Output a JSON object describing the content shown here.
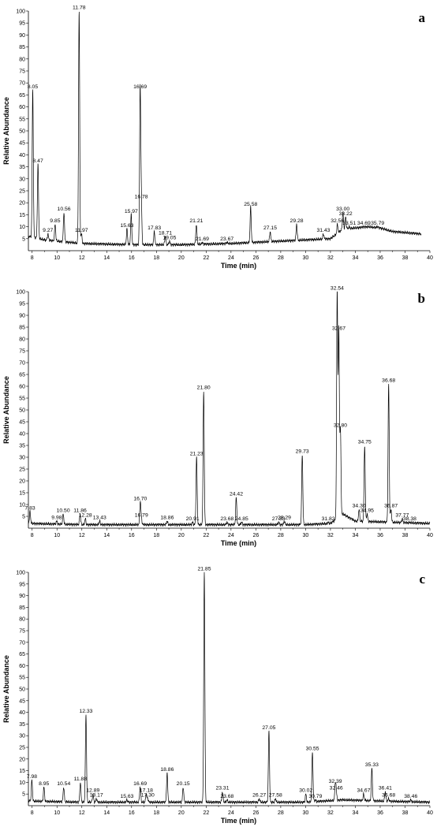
{
  "chart_data": [
    {
      "type": "line",
      "panel_label": "a",
      "xlabel": "Time (min)",
      "ylabel": "Relative Abundance",
      "xlim": [
        7.7,
        40
      ],
      "ylim": [
        0,
        100
      ],
      "x_ticks": [
        8,
        10,
        12,
        14,
        16,
        18,
        20,
        22,
        24,
        26,
        28,
        30,
        32,
        34,
        36,
        38,
        40
      ],
      "y_ticks": [
        5,
        10,
        15,
        20,
        25,
        30,
        35,
        40,
        45,
        50,
        55,
        60,
        65,
        70,
        75,
        80,
        85,
        90,
        95,
        100
      ],
      "baseline": [
        [
          7.7,
          6
        ],
        [
          9,
          4.5
        ],
        [
          12,
          3
        ],
        [
          16,
          2.5
        ],
        [
          20,
          2.5
        ],
        [
          24,
          3
        ],
        [
          28,
          4
        ],
        [
          32,
          5
        ],
        [
          33,
          9
        ],
        [
          35,
          10
        ],
        [
          36,
          9.5
        ],
        [
          37,
          8
        ],
        [
          39.3,
          7
        ]
      ],
      "peaks": [
        {
          "rt": "8.05",
          "x": 8.05,
          "y": 67
        },
        {
          "rt": "8.47",
          "x": 8.47,
          "y": 36
        },
        {
          "rt": "9.27",
          "x": 9.27,
          "y": 7
        },
        {
          "rt": "9.85",
          "x": 9.85,
          "y": 11
        },
        {
          "rt": "10.56",
          "x": 10.56,
          "y": 16
        },
        {
          "rt": "11.78",
          "x": 11.78,
          "y": 100
        },
        {
          "rt": "11.97",
          "x": 11.97,
          "y": 7
        },
        {
          "rt": "15.63",
          "x": 15.63,
          "y": 9
        },
        {
          "rt": "15.97",
          "x": 15.97,
          "y": 15
        },
        {
          "rt": "16.69",
          "x": 16.69,
          "y": 67
        },
        {
          "rt": "16.78",
          "x": 16.78,
          "y": 21
        },
        {
          "rt": "17.83",
          "x": 17.83,
          "y": 8
        },
        {
          "rt": "18.71",
          "x": 18.71,
          "y": 6
        },
        {
          "rt": "19.05",
          "x": 19.05,
          "y": 4
        },
        {
          "rt": "21.21",
          "x": 21.21,
          "y": 11
        },
        {
          "rt": "21.69",
          "x": 21.69,
          "y": 3.5
        },
        {
          "rt": "23.67",
          "x": 23.67,
          "y": 3.5
        },
        {
          "rt": "25.58",
          "x": 25.58,
          "y": 18
        },
        {
          "rt": "27.15",
          "x": 27.15,
          "y": 8
        },
        {
          "rt": "29.28",
          "x": 29.28,
          "y": 11
        },
        {
          "rt": "31.43",
          "x": 31.43,
          "y": 7
        },
        {
          "rt": "32.56",
          "x": 32.56,
          "y": 11
        },
        {
          "rt": "33.00",
          "x": 33.0,
          "y": 16
        },
        {
          "rt": "33.22",
          "x": 33.22,
          "y": 14
        },
        {
          "rt": "33.51",
          "x": 33.51,
          "y": 10
        },
        {
          "rt": "34.69",
          "x": 34.69,
          "y": 10
        },
        {
          "rt": "35.79",
          "x": 35.79,
          "y": 10
        }
      ]
    },
    {
      "type": "line",
      "panel_label": "b",
      "xlabel": "Time (min)",
      "ylabel": "Relative Abundance",
      "xlim": [
        7.7,
        40
      ],
      "ylim": [
        0,
        100
      ],
      "x_ticks": [
        8,
        10,
        12,
        14,
        16,
        18,
        20,
        22,
        24,
        26,
        28,
        30,
        32,
        34,
        36,
        38,
        40
      ],
      "y_ticks": [
        5,
        10,
        15,
        20,
        25,
        30,
        35,
        40,
        45,
        50,
        55,
        60,
        65,
        70,
        75,
        80,
        85,
        90,
        95,
        100
      ],
      "baseline": [
        [
          7.7,
          2
        ],
        [
          12,
          1.5
        ],
        [
          20,
          1.5
        ],
        [
          30,
          1.5
        ],
        [
          32,
          2
        ],
        [
          33,
          6
        ],
        [
          34,
          3
        ],
        [
          37,
          2.5
        ],
        [
          40,
          2
        ]
      ],
      "peaks": [
        {
          "rt": "7.83",
          "x": 7.83,
          "y": 7
        },
        {
          "rt": "9.98",
          "x": 9.98,
          "y": 3
        },
        {
          "rt": "10.50",
          "x": 10.5,
          "y": 6
        },
        {
          "rt": "11.86",
          "x": 11.86,
          "y": 6
        },
        {
          "rt": "12.28",
          "x": 12.28,
          "y": 4
        },
        {
          "rt": "13.43",
          "x": 13.43,
          "y": 3
        },
        {
          "rt": "16.70",
          "x": 16.7,
          "y": 11
        },
        {
          "rt": "16.79",
          "x": 16.79,
          "y": 4
        },
        {
          "rt": "18.86",
          "x": 18.86,
          "y": 3
        },
        {
          "rt": "20.91",
          "x": 20.91,
          "y": 2.5
        },
        {
          "rt": "21.23",
          "x": 21.23,
          "y": 30
        },
        {
          "rt": "21.80",
          "x": 21.8,
          "y": 58
        },
        {
          "rt": "23.68",
          "x": 23.68,
          "y": 2.5
        },
        {
          "rt": "24.42",
          "x": 24.42,
          "y": 13
        },
        {
          "rt": "24.85",
          "x": 24.85,
          "y": 2.5
        },
        {
          "rt": "27.83",
          "x": 27.83,
          "y": 2.5
        },
        {
          "rt": "28.29",
          "x": 28.29,
          "y": 3
        },
        {
          "rt": "29.73",
          "x": 29.73,
          "y": 31
        },
        {
          "rt": "31.82",
          "x": 31.82,
          "y": 2.5
        },
        {
          "rt": "32.54",
          "x": 32.54,
          "y": 100
        },
        {
          "rt": "32.67",
          "x": 32.67,
          "y": 83
        },
        {
          "rt": "32.80",
          "x": 32.8,
          "y": 42
        },
        {
          "rt": "34.30",
          "x": 34.3,
          "y": 8
        },
        {
          "rt": "34.75",
          "x": 34.75,
          "y": 35
        },
        {
          "rt": "34.95",
          "x": 34.95,
          "y": 6
        },
        {
          "rt": "36.68",
          "x": 36.68,
          "y": 61
        },
        {
          "rt": "36.87",
          "x": 36.87,
          "y": 8
        },
        {
          "rt": "37.77",
          "x": 37.77,
          "y": 4
        },
        {
          "rt": "38.38",
          "x": 38.38,
          "y": 2.5
        }
      ]
    },
    {
      "type": "line",
      "panel_label": "c",
      "xlabel": "Time (min)",
      "ylabel": "Relative Abundance",
      "xlim": [
        7.7,
        40
      ],
      "ylim": [
        0,
        100
      ],
      "x_ticks": [
        8,
        10,
        12,
        14,
        16,
        18,
        20,
        22,
        24,
        26,
        28,
        30,
        32,
        34,
        36,
        38,
        40
      ],
      "y_ticks": [
        5,
        10,
        15,
        20,
        25,
        30,
        35,
        40,
        45,
        50,
        55,
        60,
        65,
        70,
        75,
        80,
        85,
        90,
        95,
        100
      ],
      "baseline": [
        [
          7.7,
          2
        ],
        [
          12,
          1.5
        ],
        [
          20,
          1.5
        ],
        [
          30,
          1.5
        ],
        [
          33,
          2.5
        ],
        [
          36,
          2
        ],
        [
          40,
          1.5
        ]
      ],
      "peaks": [
        {
          "rt": "7.98",
          "x": 7.98,
          "y": 11
        },
        {
          "rt": "8.95",
          "x": 8.95,
          "y": 8
        },
        {
          "rt": "10.54",
          "x": 10.54,
          "y": 8
        },
        {
          "rt": "11.88",
          "x": 11.88,
          "y": 10
        },
        {
          "rt": "12.33",
          "x": 12.33,
          "y": 39
        },
        {
          "rt": "12.89",
          "x": 12.89,
          "y": 5
        },
        {
          "rt": "13.17",
          "x": 13.17,
          "y": 3
        },
        {
          "rt": "15.63",
          "x": 15.63,
          "y": 2.5
        },
        {
          "rt": "16.69",
          "x": 16.69,
          "y": 8
        },
        {
          "rt": "17.18",
          "x": 17.18,
          "y": 5
        },
        {
          "rt": "17.30",
          "x": 17.3,
          "y": 3
        },
        {
          "rt": "18.86",
          "x": 18.86,
          "y": 14
        },
        {
          "rt": "20.15",
          "x": 20.15,
          "y": 8
        },
        {
          "rt": "21.85",
          "x": 21.85,
          "y": 100
        },
        {
          "rt": "23.31",
          "x": 23.31,
          "y": 6
        },
        {
          "rt": "23.68",
          "x": 23.68,
          "y": 2.5
        },
        {
          "rt": "26.27",
          "x": 26.27,
          "y": 3
        },
        {
          "rt": "27.05",
          "x": 27.05,
          "y": 32
        },
        {
          "rt": "27.58",
          "x": 27.58,
          "y": 3
        },
        {
          "rt": "30.02",
          "x": 30.02,
          "y": 5
        },
        {
          "rt": "30.55",
          "x": 30.55,
          "y": 23
        },
        {
          "rt": "30.79",
          "x": 30.79,
          "y": 2.5
        },
        {
          "rt": "32.39",
          "x": 32.39,
          "y": 9
        },
        {
          "rt": "32.46",
          "x": 32.46,
          "y": 6
        },
        {
          "rt": "34.67",
          "x": 34.67,
          "y": 5
        },
        {
          "rt": "35.33",
          "x": 35.33,
          "y": 16
        },
        {
          "rt": "36.41",
          "x": 36.41,
          "y": 6
        },
        {
          "rt": "36.68",
          "x": 36.68,
          "y": 3
        },
        {
          "rt": "38.46",
          "x": 38.46,
          "y": 2.5
        }
      ]
    }
  ]
}
